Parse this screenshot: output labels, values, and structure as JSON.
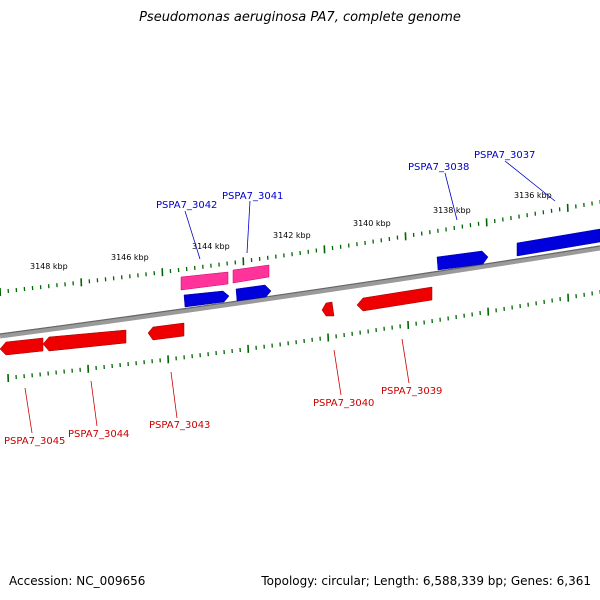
{
  "title": "Pseudomonas aeruginosa PA7, complete genome",
  "footer": {
    "accession": "Accession: NC_009656",
    "summary": "Topology: circular; Length: 6,588,339 bp; Genes: 6,361"
  },
  "colors": {
    "forward": "#0000cc",
    "reverse": "#cc0000",
    "pseudo": "#ff3399",
    "tick": "#006600",
    "backbone": "#808080"
  },
  "ticks": [
    {
      "label": "3136 kbp",
      "kbp": 3136
    },
    {
      "label": "3138 kbp",
      "kbp": 3138
    },
    {
      "label": "3140 kbp",
      "kbp": 3140
    },
    {
      "label": "3142 kbp",
      "kbp": 3142
    },
    {
      "label": "3144 kbp",
      "kbp": 3144
    },
    {
      "label": "3146 kbp",
      "kbp": 3146
    },
    {
      "label": "3148 kbp",
      "kbp": 3148
    }
  ],
  "genes": [
    {
      "label": "PSPA7_3037",
      "strand": "forward"
    },
    {
      "label": "PSPA7_3038",
      "strand": "forward"
    },
    {
      "label": "PSPA7_3039",
      "strand": "reverse"
    },
    {
      "label": "PSPA7_3040",
      "strand": "reverse"
    },
    {
      "label": "PSPA7_3041",
      "strand": "forward"
    },
    {
      "label": "PSPA7_3042",
      "strand": "forward"
    },
    {
      "label": "PSPA7_3043",
      "strand": "reverse"
    },
    {
      "label": "PSPA7_3044",
      "strand": "reverse"
    },
    {
      "label": "PSPA7_3045",
      "strand": "reverse"
    }
  ]
}
